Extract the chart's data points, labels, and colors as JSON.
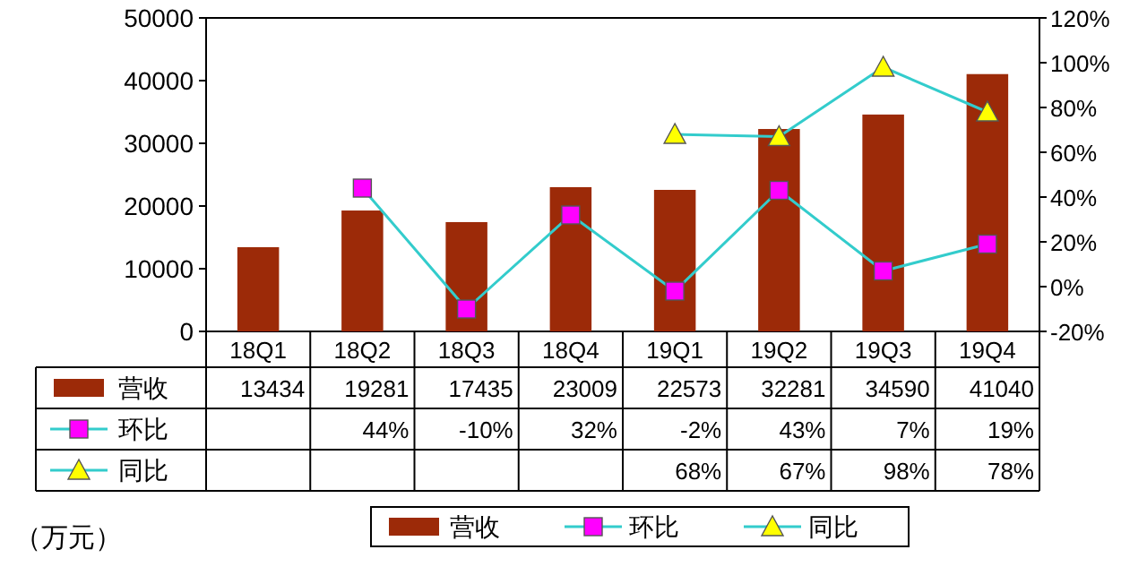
{
  "chart_data": {
    "type": "bar",
    "annotations": [
      "（万元）"
    ],
    "categories": [
      "18Q1",
      "18Q2",
      "18Q3",
      "18Q4",
      "19Q1",
      "19Q2",
      "19Q3",
      "19Q4"
    ],
    "series": [
      {
        "name": "营收",
        "color": "#9c2a08",
        "values": [
          13434,
          19281,
          17435,
          23009,
          22573,
          32281,
          34590,
          41040
        ],
        "value_labels": [
          "13434",
          "19281",
          "17435",
          "23009",
          "22573",
          "32281",
          "34590",
          "41040"
        ]
      },
      {
        "name": "环比",
        "type": "line",
        "axis": "y2",
        "color": "#33cccc",
        "colors": [
          null,
          "#ff00ff",
          "#ff00ff",
          "#ff00ff",
          "#ff00ff",
          "#ff00ff",
          "#ff00ff",
          "#ff00ff"
        ],
        "marker": "square",
        "values": [
          null,
          44,
          -10,
          32,
          -2,
          43,
          7,
          19
        ],
        "value_labels": [
          null,
          "44%",
          "-10%",
          "32%",
          "-2%",
          "43%",
          "7%",
          "19%"
        ]
      },
      {
        "name": "同比",
        "type": "line",
        "axis": "y2",
        "color": "#33cccc",
        "colors": [
          null,
          null,
          null,
          null,
          "#ffff00",
          "#ffff00",
          "#ffff00",
          "#ffff00"
        ],
        "marker": "triangle",
        "values": [
          null,
          null,
          null,
          null,
          68,
          67,
          98,
          78
        ],
        "value_labels": [
          null,
          null,
          null,
          null,
          "68%",
          "67%",
          "98%",
          "78%"
        ]
      }
    ],
    "ylim": [
      0,
      50000
    ],
    "yticks": [
      0,
      10000,
      20000,
      30000,
      40000,
      50000
    ],
    "y2lim": [
      -20,
      120
    ],
    "y2ticks": [
      {
        "value": -20,
        "label": "-20%"
      },
      {
        "value": 0,
        "label": "0%"
      },
      {
        "value": 20,
        "label": "20%"
      },
      {
        "value": 40,
        "label": "40%"
      },
      {
        "value": 60,
        "label": "60%"
      },
      {
        "value": 80,
        "label": "80%"
      },
      {
        "value": 100,
        "label": "100%"
      },
      {
        "value": 120,
        "label": "120%"
      }
    ],
    "legend": "bottom",
    "grid": false
  }
}
